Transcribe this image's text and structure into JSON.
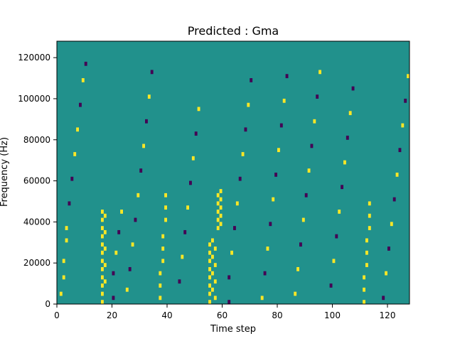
{
  "chart_data": {
    "type": "heatmap",
    "title": "Predicted : Gma",
    "xlabel": "Time step",
    "ylabel": "Frequency (Hz)",
    "xlim": [
      0,
      128
    ],
    "ylim": [
      0,
      128000
    ],
    "x_ticks": [
      0,
      20,
      40,
      60,
      80,
      100,
      120
    ],
    "y_ticks": [
      0,
      20000,
      40000,
      60000,
      80000,
      100000,
      120000
    ],
    "x_tick_labels": [
      "0",
      "20",
      "40",
      "60",
      "80",
      "100",
      "120"
    ],
    "y_tick_labels": [
      "0",
      "20000",
      "40000",
      "60000",
      "80000",
      "100000",
      "120000"
    ],
    "rows": 64,
    "cols": 128,
    "row_height_hz": 2000,
    "colormap": {
      "background": "#21918c",
      "low": "#440154",
      "high": "#fde725"
    },
    "background_value": 0,
    "cells": [
      {
        "x": 1,
        "y": 2,
        "value": 1
      },
      {
        "x": 2,
        "y": 6,
        "value": 1
      },
      {
        "x": 2,
        "y": 10,
        "value": 1
      },
      {
        "x": 3,
        "y": 15,
        "value": 1
      },
      {
        "x": 3,
        "y": 18,
        "value": 1
      },
      {
        "x": 4,
        "y": 24,
        "value": -1
      },
      {
        "x": 5,
        "y": 30,
        "value": -1
      },
      {
        "x": 6,
        "y": 36,
        "value": 1
      },
      {
        "x": 7,
        "y": 42,
        "value": 1
      },
      {
        "x": 8,
        "y": 48,
        "value": -1
      },
      {
        "x": 9,
        "y": 54,
        "value": 1
      },
      {
        "x": 10,
        "y": 58,
        "value": -1
      },
      {
        "x": 16,
        "y": 0,
        "value": 1
      },
      {
        "x": 16,
        "y": 2,
        "value": 1
      },
      {
        "x": 16,
        "y": 4,
        "value": 1
      },
      {
        "x": 16,
        "y": 6,
        "value": 1
      },
      {
        "x": 16,
        "y": 8,
        "value": 1
      },
      {
        "x": 16,
        "y": 10,
        "value": 1
      },
      {
        "x": 16,
        "y": 12,
        "value": 1
      },
      {
        "x": 16,
        "y": 14,
        "value": 1
      },
      {
        "x": 16,
        "y": 16,
        "value": 1
      },
      {
        "x": 16,
        "y": 18,
        "value": 1
      },
      {
        "x": 16,
        "y": 20,
        "value": 1
      },
      {
        "x": 16,
        "y": 22,
        "value": 1
      },
      {
        "x": 17,
        "y": 5,
        "value": 1
      },
      {
        "x": 17,
        "y": 9,
        "value": 1
      },
      {
        "x": 17,
        "y": 13,
        "value": 1
      },
      {
        "x": 17,
        "y": 17,
        "value": 1
      },
      {
        "x": 17,
        "y": 21,
        "value": 1
      },
      {
        "x": 20,
        "y": 1,
        "value": -1
      },
      {
        "x": 20,
        "y": 7,
        "value": -1
      },
      {
        "x": 21,
        "y": 12,
        "value": 1
      },
      {
        "x": 22,
        "y": 17,
        "value": -1
      },
      {
        "x": 23,
        "y": 22,
        "value": 1
      },
      {
        "x": 25,
        "y": 3,
        "value": 1
      },
      {
        "x": 26,
        "y": 8,
        "value": -1
      },
      {
        "x": 27,
        "y": 14,
        "value": 1
      },
      {
        "x": 28,
        "y": 20,
        "value": -1
      },
      {
        "x": 29,
        "y": 26,
        "value": 1
      },
      {
        "x": 30,
        "y": 32,
        "value": -1
      },
      {
        "x": 31,
        "y": 38,
        "value": 1
      },
      {
        "x": 32,
        "y": 44,
        "value": -1
      },
      {
        "x": 33,
        "y": 50,
        "value": 1
      },
      {
        "x": 34,
        "y": 56,
        "value": -1
      },
      {
        "x": 37,
        "y": 1,
        "value": 1
      },
      {
        "x": 37,
        "y": 4,
        "value": 1
      },
      {
        "x": 37,
        "y": 7,
        "value": 1
      },
      {
        "x": 38,
        "y": 10,
        "value": 1
      },
      {
        "x": 38,
        "y": 13,
        "value": 1
      },
      {
        "x": 38,
        "y": 16,
        "value": 1
      },
      {
        "x": 39,
        "y": 20,
        "value": 1
      },
      {
        "x": 39,
        "y": 23,
        "value": 1
      },
      {
        "x": 39,
        "y": 26,
        "value": 1
      },
      {
        "x": 44,
        "y": 5,
        "value": -1
      },
      {
        "x": 45,
        "y": 11,
        "value": 1
      },
      {
        "x": 46,
        "y": 17,
        "value": -1
      },
      {
        "x": 47,
        "y": 23,
        "value": 1
      },
      {
        "x": 48,
        "y": 29,
        "value": -1
      },
      {
        "x": 49,
        "y": 35,
        "value": 1
      },
      {
        "x": 50,
        "y": 41,
        "value": -1
      },
      {
        "x": 51,
        "y": 47,
        "value": 1
      },
      {
        "x": 55,
        "y": 0,
        "value": 1
      },
      {
        "x": 55,
        "y": 2,
        "value": 1
      },
      {
        "x": 55,
        "y": 4,
        "value": 1
      },
      {
        "x": 55,
        "y": 6,
        "value": 1
      },
      {
        "x": 55,
        "y": 8,
        "value": 1
      },
      {
        "x": 55,
        "y": 10,
        "value": 1
      },
      {
        "x": 55,
        "y": 12,
        "value": 1
      },
      {
        "x": 55,
        "y": 14,
        "value": 1
      },
      {
        "x": 56,
        "y": 3,
        "value": 1
      },
      {
        "x": 56,
        "y": 7,
        "value": 1
      },
      {
        "x": 56,
        "y": 11,
        "value": 1
      },
      {
        "x": 56,
        "y": 15,
        "value": 1
      },
      {
        "x": 57,
        "y": 1,
        "value": 1
      },
      {
        "x": 57,
        "y": 5,
        "value": 1
      },
      {
        "x": 57,
        "y": 9,
        "value": 1
      },
      {
        "x": 57,
        "y": 13,
        "value": 1
      },
      {
        "x": 58,
        "y": 18,
        "value": 1
      },
      {
        "x": 58,
        "y": 20,
        "value": 1
      },
      {
        "x": 58,
        "y": 22,
        "value": 1
      },
      {
        "x": 58,
        "y": 24,
        "value": 1
      },
      {
        "x": 58,
        "y": 26,
        "value": 1
      },
      {
        "x": 59,
        "y": 19,
        "value": 1
      },
      {
        "x": 59,
        "y": 21,
        "value": 1
      },
      {
        "x": 59,
        "y": 23,
        "value": 1
      },
      {
        "x": 59,
        "y": 25,
        "value": 1
      },
      {
        "x": 59,
        "y": 27,
        "value": 1
      },
      {
        "x": 62,
        "y": 0,
        "value": -1
      },
      {
        "x": 62,
        "y": 6,
        "value": -1
      },
      {
        "x": 63,
        "y": 12,
        "value": 1
      },
      {
        "x": 64,
        "y": 18,
        "value": -1
      },
      {
        "x": 65,
        "y": 24,
        "value": 1
      },
      {
        "x": 66,
        "y": 30,
        "value": -1
      },
      {
        "x": 67,
        "y": 36,
        "value": 1
      },
      {
        "x": 68,
        "y": 42,
        "value": -1
      },
      {
        "x": 69,
        "y": 48,
        "value": 1
      },
      {
        "x": 70,
        "y": 54,
        "value": -1
      },
      {
        "x": 74,
        "y": 1,
        "value": 1
      },
      {
        "x": 75,
        "y": 7,
        "value": -1
      },
      {
        "x": 76,
        "y": 13,
        "value": 1
      },
      {
        "x": 77,
        "y": 19,
        "value": -1
      },
      {
        "x": 78,
        "y": 25,
        "value": 1
      },
      {
        "x": 79,
        "y": 31,
        "value": -1
      },
      {
        "x": 80,
        "y": 37,
        "value": 1
      },
      {
        "x": 81,
        "y": 43,
        "value": -1
      },
      {
        "x": 82,
        "y": 49,
        "value": 1
      },
      {
        "x": 83,
        "y": 55,
        "value": -1
      },
      {
        "x": 86,
        "y": 2,
        "value": 1
      },
      {
        "x": 87,
        "y": 8,
        "value": 1
      },
      {
        "x": 88,
        "y": 14,
        "value": -1
      },
      {
        "x": 89,
        "y": 20,
        "value": 1
      },
      {
        "x": 90,
        "y": 26,
        "value": -1
      },
      {
        "x": 91,
        "y": 32,
        "value": 1
      },
      {
        "x": 92,
        "y": 38,
        "value": -1
      },
      {
        "x": 93,
        "y": 44,
        "value": 1
      },
      {
        "x": 94,
        "y": 50,
        "value": -1
      },
      {
        "x": 95,
        "y": 56,
        "value": 1
      },
      {
        "x": 99,
        "y": 4,
        "value": -1
      },
      {
        "x": 100,
        "y": 10,
        "value": 1
      },
      {
        "x": 101,
        "y": 16,
        "value": -1
      },
      {
        "x": 102,
        "y": 22,
        "value": 1
      },
      {
        "x": 103,
        "y": 28,
        "value": -1
      },
      {
        "x": 104,
        "y": 34,
        "value": 1
      },
      {
        "x": 105,
        "y": 40,
        "value": -1
      },
      {
        "x": 106,
        "y": 46,
        "value": 1
      },
      {
        "x": 107,
        "y": 52,
        "value": -1
      },
      {
        "x": 111,
        "y": 0,
        "value": 1
      },
      {
        "x": 111,
        "y": 3,
        "value": 1
      },
      {
        "x": 111,
        "y": 6,
        "value": 1
      },
      {
        "x": 112,
        "y": 9,
        "value": 1
      },
      {
        "x": 112,
        "y": 12,
        "value": 1
      },
      {
        "x": 112,
        "y": 15,
        "value": 1
      },
      {
        "x": 113,
        "y": 18,
        "value": 1
      },
      {
        "x": 113,
        "y": 21,
        "value": 1
      },
      {
        "x": 113,
        "y": 24,
        "value": 1
      },
      {
        "x": 118,
        "y": 1,
        "value": -1
      },
      {
        "x": 119,
        "y": 7,
        "value": 1
      },
      {
        "x": 120,
        "y": 13,
        "value": -1
      },
      {
        "x": 121,
        "y": 19,
        "value": 1
      },
      {
        "x": 122,
        "y": 25,
        "value": -1
      },
      {
        "x": 123,
        "y": 31,
        "value": 1
      },
      {
        "x": 124,
        "y": 37,
        "value": -1
      },
      {
        "x": 125,
        "y": 43,
        "value": 1
      },
      {
        "x": 126,
        "y": 49,
        "value": -1
      },
      {
        "x": 127,
        "y": 55,
        "value": 1
      }
    ]
  }
}
